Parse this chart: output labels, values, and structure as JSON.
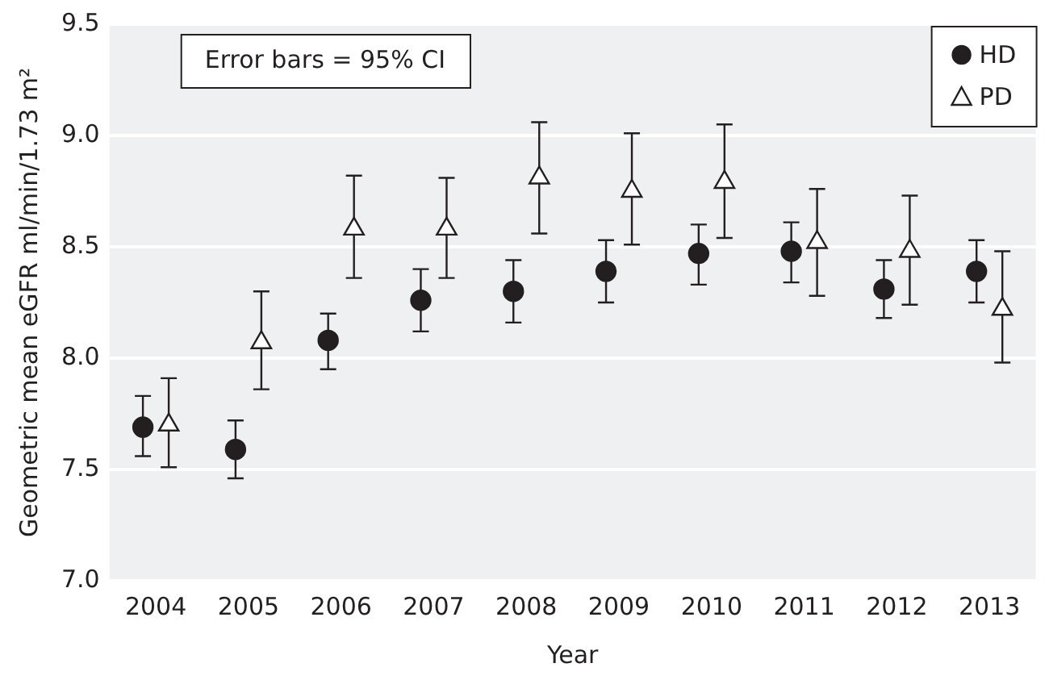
{
  "chart_data": {
    "type": "scatter",
    "xlabel": "Year",
    "ylabel": "Geometric mean eGFR ml/min/1.73 m²",
    "categories": [
      "2004",
      "2005",
      "2006",
      "2007",
      "2008",
      "2009",
      "2010",
      "2011",
      "2012",
      "2013"
    ],
    "series": [
      {
        "name": "HD",
        "color": "#231f20",
        "marker": "circle",
        "values": [
          7.69,
          7.59,
          8.08,
          8.26,
          8.3,
          8.39,
          8.47,
          8.48,
          8.31,
          8.39
        ],
        "errors": [
          [
            7.56,
            7.83
          ],
          [
            7.46,
            7.72
          ],
          [
            7.95,
            8.2
          ],
          [
            8.12,
            8.4
          ],
          [
            8.16,
            8.44
          ],
          [
            8.25,
            8.53
          ],
          [
            8.33,
            8.6
          ],
          [
            8.34,
            8.61
          ],
          [
            8.18,
            8.44
          ],
          [
            8.25,
            8.53
          ]
        ]
      },
      {
        "name": "PD",
        "color": "#231f20",
        "marker": "triangle",
        "values": [
          7.7,
          8.07,
          8.58,
          8.58,
          8.81,
          8.75,
          8.79,
          8.52,
          8.48,
          8.22
        ],
        "errors": [
          [
            7.51,
            7.91
          ],
          [
            7.86,
            8.3
          ],
          [
            8.36,
            8.82
          ],
          [
            8.36,
            8.81
          ],
          [
            8.56,
            9.06
          ],
          [
            8.51,
            9.01
          ],
          [
            8.54,
            9.05
          ],
          [
            8.28,
            8.76
          ],
          [
            8.24,
            8.73
          ],
          [
            7.98,
            8.48
          ]
        ]
      }
    ],
    "ylim": [
      7,
      9.5
    ],
    "yticks": [
      {
        "value": 7,
        "label": "7.0"
      },
      {
        "value": 7.5,
        "label": "7.5"
      },
      {
        "value": 8,
        "label": "8.0"
      },
      {
        "value": 8.5,
        "label": "8.5"
      },
      {
        "value": 9,
        "label": "9.0"
      },
      {
        "value": 9.5,
        "label": "9.5"
      }
    ],
    "grid": "y",
    "legend": "top right",
    "annotations": [
      "Error bars = 95% CI"
    ]
  }
}
